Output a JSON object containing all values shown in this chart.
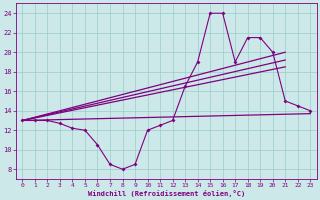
{
  "main_line_x": [
    0,
    1,
    2,
    3,
    4,
    5,
    6,
    7,
    8,
    9,
    10,
    11,
    12,
    13,
    14,
    15,
    16,
    17,
    18,
    19,
    20,
    21,
    22,
    23
  ],
  "main_line_y": [
    13,
    13,
    13,
    12.7,
    12.2,
    12,
    10.5,
    8.5,
    8,
    8.5,
    12,
    12.5,
    13,
    16.5,
    19,
    24,
    24,
    19,
    21.5,
    21.5,
    20,
    15,
    14.5,
    14
  ],
  "flat_line_x": [
    0,
    23
  ],
  "flat_line_y": [
    13.0,
    13.7
  ],
  "trend1_x": [
    0,
    21
  ],
  "trend1_y": [
    13.0,
    20.0
  ],
  "trend2_x": [
    0,
    21
  ],
  "trend2_y": [
    13.0,
    19.2
  ],
  "trend3_x": [
    0,
    21
  ],
  "trend3_y": [
    13.0,
    18.5
  ],
  "line_color": "#800080",
  "bg_color": "#cce8e8",
  "grid_color": "#99cccc",
  "xlabel": "Windchill (Refroidissement éolien,°C)",
  "xlim": [
    -0.5,
    23.5
  ],
  "ylim": [
    7,
    25
  ],
  "yticks": [
    8,
    10,
    12,
    14,
    16,
    18,
    20,
    22,
    24
  ],
  "xticks": [
    0,
    1,
    2,
    3,
    4,
    5,
    6,
    7,
    8,
    9,
    10,
    11,
    12,
    13,
    14,
    15,
    16,
    17,
    18,
    19,
    20,
    21,
    22,
    23
  ]
}
